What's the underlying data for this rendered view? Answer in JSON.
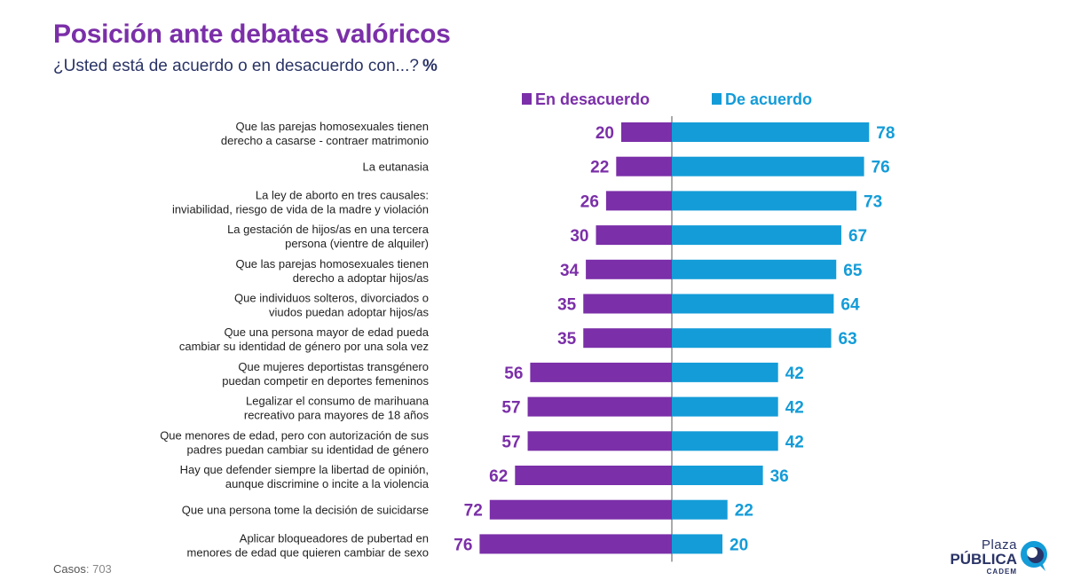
{
  "title": "Posición ante debates valóricos",
  "subtitle": "¿Usted está de acuerdo o en desacuerdo con...?",
  "subtitle_unit": "%",
  "footnote": {
    "label": "Casos",
    "value": ": 703"
  },
  "logo": {
    "top": "Plaza",
    "main": "PÚBLICA",
    "sub": "CADEM"
  },
  "colors": {
    "disagree": "#7b2fa8",
    "agree": "#149cd8"
  },
  "chart_data": {
    "type": "bar",
    "orientation": "horizontal-diverging",
    "categories": [
      [
        "Que las parejas homosexuales tienen",
        "derecho a casarse - contraer matrimonio"
      ],
      [
        "La eutanasia"
      ],
      [
        "La ley de aborto en tres causales:",
        "inviabilidad, riesgo de vida de la madre y violación"
      ],
      [
        "La gestación de hijos/as en una tercera",
        "persona (vientre de alquiler)"
      ],
      [
        "Que las parejas homosexuales tienen",
        "derecho a adoptar hijos/as"
      ],
      [
        "Que individuos solteros, divorciados o",
        "viudos puedan adoptar hijos/as"
      ],
      [
        "Que una persona mayor de edad pueda",
        "cambiar su identidad de género por una sola vez"
      ],
      [
        "Que mujeres deportistas transgénero",
        "puedan competir en deportes femeninos"
      ],
      [
        "Legalizar el consumo de marihuana",
        "recreativo para mayores de 18 años"
      ],
      [
        "Que menores de edad, pero con autorización de sus",
        "padres puedan cambiar su identidad de género"
      ],
      [
        "Hay que defender siempre la libertad de opinión,",
        "aunque discrimine o incite a la violencia"
      ],
      [
        "Que una persona tome la decisión de suicidarse"
      ],
      [
        "Aplicar bloqueadores de pubertad en",
        "menores de edad que quieren cambiar de sexo"
      ]
    ],
    "series": [
      {
        "name": "En desacuerdo",
        "color": "#7b2fa8",
        "values": [
          20,
          22,
          26,
          30,
          34,
          35,
          35,
          56,
          57,
          57,
          62,
          72,
          76
        ]
      },
      {
        "name": "De acuerdo",
        "color": "#149cd8",
        "values": [
          78,
          76,
          73,
          67,
          65,
          64,
          63,
          42,
          42,
          42,
          36,
          22,
          20
        ]
      }
    ],
    "legend_position": "top",
    "grid": false
  }
}
